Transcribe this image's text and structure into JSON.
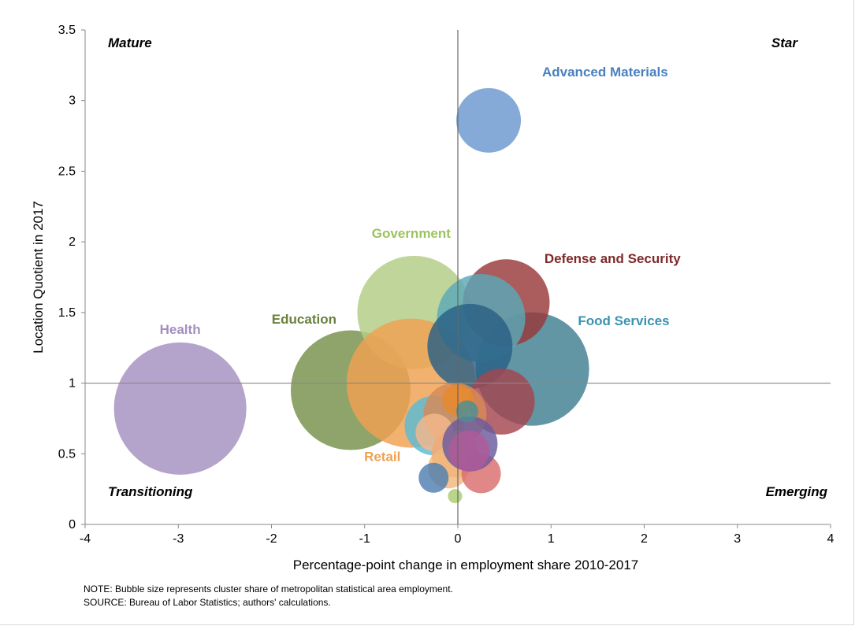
{
  "chart_data": {
    "type": "bubble",
    "xlabel": "Percentage-point change in employment share 2010-2017",
    "ylabel": "Location Quotient in 2017",
    "xlim": [
      -4,
      4
    ],
    "ylim": [
      0,
      3.5
    ],
    "x_ticks": [
      "-4",
      "-3",
      "-2",
      "-1",
      "0",
      "1",
      "2",
      "3",
      "4"
    ],
    "y_ticks": [
      "0",
      "0.5",
      "1",
      "1.5",
      "2",
      "2.5",
      "3",
      "3.5"
    ],
    "reference_lines": {
      "x": 0,
      "y": 1
    },
    "quadrant_labels": [
      "Mature",
      "Star",
      "Transitioning",
      "Emerging"
    ],
    "grid": false,
    "bubble_size_meaning": "relative share of metropolitan statistical area employment (estimated)",
    "series": [
      {
        "name": "Health",
        "color": "#a38fc0",
        "points": [
          {
            "x": -2.98,
            "y": 0.82,
            "size": 84
          }
        ]
      },
      {
        "name": "Education",
        "color": "#76904a",
        "points": [
          {
            "x": -1.15,
            "y": 0.95,
            "size": 76
          }
        ]
      },
      {
        "name": "Government",
        "color": "#b2cc84",
        "points": [
          {
            "x": -0.47,
            "y": 1.5,
            "size": 72
          }
        ]
      },
      {
        "name": "Food Services",
        "color": "#3f7f90",
        "points": [
          {
            "x": 0.8,
            "y": 1.1,
            "size": 72
          }
        ]
      },
      {
        "name": "Retail",
        "color": "#f0a050",
        "points": [
          {
            "x": -0.5,
            "y": 1.0,
            "size": 82
          }
        ]
      },
      {
        "name": "Defense and Security",
        "color": "#983838",
        "points": [
          {
            "x": 0.52,
            "y": 1.57,
            "size": 55
          }
        ]
      },
      {
        "name": "Advanced Materials",
        "color": "#6a97cf",
        "points": [
          {
            "x": 0.33,
            "y": 2.86,
            "size": 41
          }
        ]
      },
      {
        "name": "",
        "color": "#5aa8b8",
        "points": [
          {
            "x": 0.25,
            "y": 1.46,
            "size": 56
          }
        ]
      },
      {
        "name": "",
        "color": "#2a5f85",
        "points": [
          {
            "x": 0.13,
            "y": 1.26,
            "size": 54
          }
        ]
      },
      {
        "name": "",
        "color": "#a3464f",
        "points": [
          {
            "x": 0.47,
            "y": 0.87,
            "size": 42
          }
        ]
      },
      {
        "name": "",
        "color": "#5bbbd5",
        "points": [
          {
            "x": -0.25,
            "y": 0.7,
            "size": 38
          }
        ]
      },
      {
        "name": "",
        "color": "#d88a56",
        "points": [
          {
            "x": -0.03,
            "y": 0.78,
            "size": 40
          }
        ]
      },
      {
        "name": "",
        "color": "#e78a2e",
        "points": [
          {
            "x": 0.0,
            "y": 0.88,
            "size": 20
          }
        ]
      },
      {
        "name": "",
        "color": "#f5b88c",
        "points": [
          {
            "x": -0.25,
            "y": 0.65,
            "size": 24
          }
        ]
      },
      {
        "name": "",
        "color": "#efaa78",
        "points": [
          {
            "x": -0.03,
            "y": 0.5,
            "size": 30
          }
        ]
      },
      {
        "name": "",
        "color": "#f2b77b",
        "points": [
          {
            "x": -0.1,
            "y": 0.4,
            "size": 26
          }
        ]
      },
      {
        "name": "",
        "color": "#d96e6e",
        "points": [
          {
            "x": 0.25,
            "y": 0.36,
            "size": 25
          }
        ]
      },
      {
        "name": "",
        "color": "#6a5a9e",
        "points": [
          {
            "x": 0.13,
            "y": 0.57,
            "size": 35
          }
        ]
      },
      {
        "name": "",
        "color": "#b05a98",
        "points": [
          {
            "x": 0.12,
            "y": 0.52,
            "size": 26
          }
        ]
      },
      {
        "name": "",
        "color": "#4e7fb0",
        "points": [
          {
            "x": -0.26,
            "y": 0.33,
            "size": 19
          }
        ]
      },
      {
        "name": "",
        "color": "#4a8f93",
        "points": [
          {
            "x": 0.1,
            "y": 0.8,
            "size": 14
          }
        ]
      },
      {
        "name": "",
        "color": "#a8cc70",
        "points": [
          {
            "x": -0.03,
            "y": 0.2,
            "size": 9
          }
        ]
      }
    ],
    "annotations": [
      {
        "text": "Health",
        "color": "#a38fc0",
        "x": -2.98,
        "y": 1.35
      },
      {
        "text": "Education",
        "color": "#6a7f3d",
        "x": -1.65,
        "y": 1.42
      },
      {
        "text": "Government",
        "color": "#9ec25e",
        "x": -0.5,
        "y": 2.03
      },
      {
        "text": "Defense and Security",
        "color": "#7f2a2a",
        "x": 1.66,
        "y": 1.85
      },
      {
        "text": "Food Services",
        "color": "#3a93b0",
        "x": 1.78,
        "y": 1.41
      },
      {
        "text": "Advanced Materials",
        "color": "#4a7fc1",
        "x": 1.58,
        "y": 3.17
      },
      {
        "text": "Retail",
        "color": "#f0a050",
        "x": -0.81,
        "y": 0.45
      }
    ]
  },
  "notes": {
    "note": "NOTE: Bubble size represents cluster share of metropolitan statistical area employment.",
    "source": "SOURCE: Bureau of Labor Statistics; authors' calculations."
  }
}
